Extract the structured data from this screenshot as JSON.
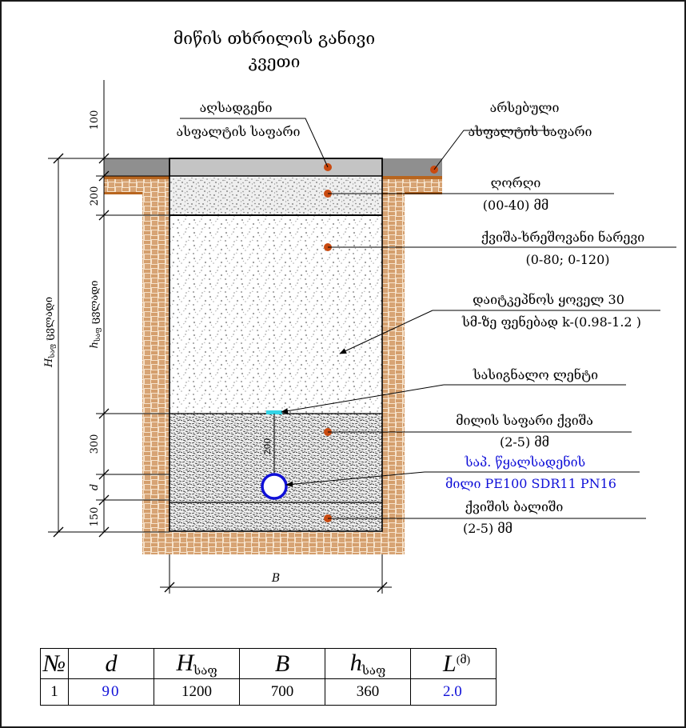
{
  "title": {
    "line1": "მიწის თხრილის განივი",
    "line2": "კვეთი"
  },
  "callouts": {
    "new_asphalt": {
      "line1": "აღსადგენი",
      "line2": "ასფალტის საფარი"
    },
    "existing_asphalt": {
      "line1": "არსებული",
      "line2": "ასფალტის საფარი"
    },
    "gravel": {
      "line1": "ღორღი",
      "line2": "(00-40) მმ"
    },
    "sand_gravel_mix": {
      "line1": "ქვიშა-ხრეშოვანი ნარევი",
      "line2": "(0-80; 0-120)"
    },
    "compaction": {
      "line1": "დაიტკეპნოს ყოველ 30",
      "line2": "სმ-ზე ფენებად k-(0.98-1.2 )"
    },
    "signal_tape": {
      "line1": "სასიგნალო ლენტი"
    },
    "pipe_cover": {
      "line1": "მილის საფარი ქვიშა",
      "line2": "(2-5) მმ"
    },
    "water_pipe": {
      "line1": "საპ. წყალსადენის",
      "line2": "მილი PE100 SDR11 PN16"
    },
    "sand_bed": {
      "line1": "ქვიშის ბალიში",
      "line2": "(2-5) მმ"
    }
  },
  "dimensions": {
    "d100": "100",
    "d200": "200",
    "h_label": "h",
    "h_sub": "საფ",
    "h_word": "ცვლადი",
    "H_label": "H",
    "H_sub": "საფ",
    "H_word": "ცვლადი",
    "d300": "300",
    "d_label": "d",
    "d150": "150",
    "pipe_gap": "200",
    "B_label": "B"
  },
  "table": {
    "headers": {
      "no": "№",
      "d": "d",
      "H": "H",
      "H_sub": "საფ",
      "B": "B",
      "h": "h",
      "h_sub": "საფ",
      "L": "L",
      "L_unit": "(მ)"
    },
    "row": {
      "no": "1",
      "d": "90",
      "H": "1200",
      "B": "700",
      "h": "360",
      "L": "2.0"
    }
  },
  "colors": {
    "soil": "#b8651e",
    "asphalt_existing": "#8f8f8f",
    "asphalt_new": "#c4c4c4",
    "marker": "#c94a10",
    "pipe": "#1010d8",
    "tape": "#33d4e6",
    "blue_text": "#1010d8"
  }
}
